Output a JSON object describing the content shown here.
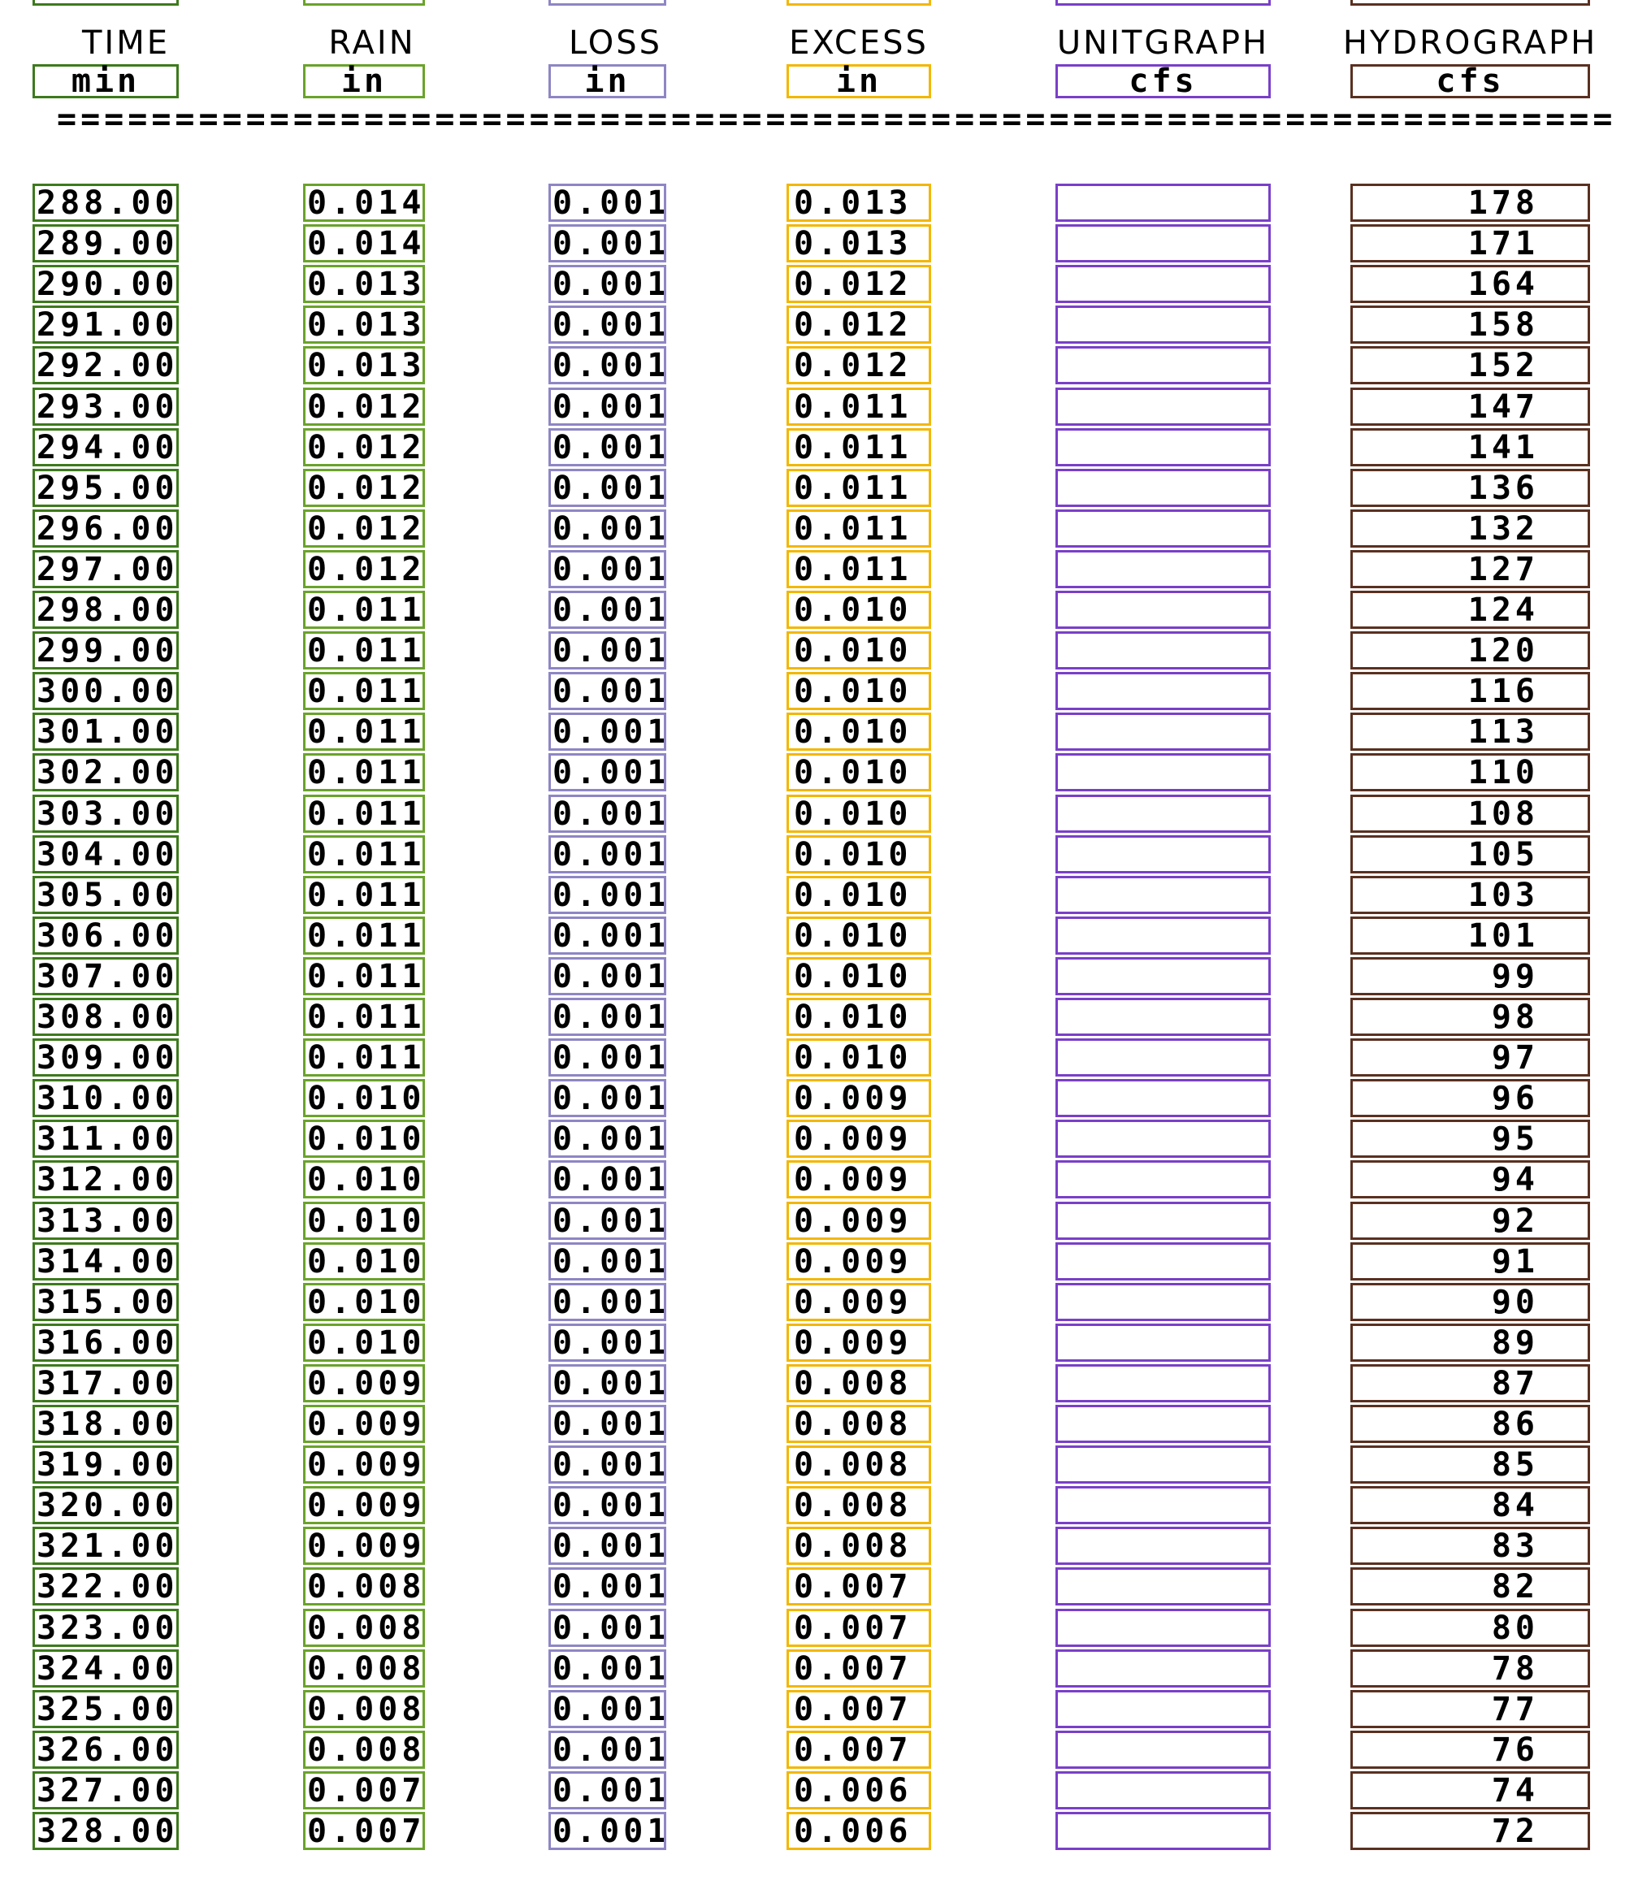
{
  "headers": [
    {
      "key": "time",
      "title": "TIME",
      "unit": "min"
    },
    {
      "key": "rain",
      "title": "RAIN",
      "unit": "in"
    },
    {
      "key": "loss",
      "title": "LOSS",
      "unit": "in"
    },
    {
      "key": "excess",
      "title": "EXCESS",
      "unit": "in"
    },
    {
      "key": "unitgraph",
      "title": "UNITGRAPH",
      "unit": "cfs"
    },
    {
      "key": "hydrograph",
      "title": "HYDROGRAPH",
      "unit": "cfs"
    }
  ],
  "separator": "=====================================================================",
  "colors": {
    "time": "#3d7a1c",
    "rain": "#6aa32a",
    "loss": "#8e86c4",
    "excess": "#f2b705",
    "unitgraph": "#7a3fc9",
    "hydrograph": "#5a3020"
  },
  "rows": [
    {
      "time": "288.00",
      "rain": "0.014",
      "loss": "0.001",
      "excess": "0.013",
      "unitgraph": "",
      "hydrograph": "178"
    },
    {
      "time": "289.00",
      "rain": "0.014",
      "loss": "0.001",
      "excess": "0.013",
      "unitgraph": "",
      "hydrograph": "171"
    },
    {
      "time": "290.00",
      "rain": "0.013",
      "loss": "0.001",
      "excess": "0.012",
      "unitgraph": "",
      "hydrograph": "164"
    },
    {
      "time": "291.00",
      "rain": "0.013",
      "loss": "0.001",
      "excess": "0.012",
      "unitgraph": "",
      "hydrograph": "158"
    },
    {
      "time": "292.00",
      "rain": "0.013",
      "loss": "0.001",
      "excess": "0.012",
      "unitgraph": "",
      "hydrograph": "152"
    },
    {
      "time": "293.00",
      "rain": "0.012",
      "loss": "0.001",
      "excess": "0.011",
      "unitgraph": "",
      "hydrograph": "147"
    },
    {
      "time": "294.00",
      "rain": "0.012",
      "loss": "0.001",
      "excess": "0.011",
      "unitgraph": "",
      "hydrograph": "141"
    },
    {
      "time": "295.00",
      "rain": "0.012",
      "loss": "0.001",
      "excess": "0.011",
      "unitgraph": "",
      "hydrograph": "136"
    },
    {
      "time": "296.00",
      "rain": "0.012",
      "loss": "0.001",
      "excess": "0.011",
      "unitgraph": "",
      "hydrograph": "132"
    },
    {
      "time": "297.00",
      "rain": "0.012",
      "loss": "0.001",
      "excess": "0.011",
      "unitgraph": "",
      "hydrograph": "127"
    },
    {
      "time": "298.00",
      "rain": "0.011",
      "loss": "0.001",
      "excess": "0.010",
      "unitgraph": "",
      "hydrograph": "124"
    },
    {
      "time": "299.00",
      "rain": "0.011",
      "loss": "0.001",
      "excess": "0.010",
      "unitgraph": "",
      "hydrograph": "120"
    },
    {
      "time": "300.00",
      "rain": "0.011",
      "loss": "0.001",
      "excess": "0.010",
      "unitgraph": "",
      "hydrograph": "116"
    },
    {
      "time": "301.00",
      "rain": "0.011",
      "loss": "0.001",
      "excess": "0.010",
      "unitgraph": "",
      "hydrograph": "113"
    },
    {
      "time": "302.00",
      "rain": "0.011",
      "loss": "0.001",
      "excess": "0.010",
      "unitgraph": "",
      "hydrograph": "110"
    },
    {
      "time": "303.00",
      "rain": "0.011",
      "loss": "0.001",
      "excess": "0.010",
      "unitgraph": "",
      "hydrograph": "108"
    },
    {
      "time": "304.00",
      "rain": "0.011",
      "loss": "0.001",
      "excess": "0.010",
      "unitgraph": "",
      "hydrograph": "105"
    },
    {
      "time": "305.00",
      "rain": "0.011",
      "loss": "0.001",
      "excess": "0.010",
      "unitgraph": "",
      "hydrograph": "103"
    },
    {
      "time": "306.00",
      "rain": "0.011",
      "loss": "0.001",
      "excess": "0.010",
      "unitgraph": "",
      "hydrograph": "101"
    },
    {
      "time": "307.00",
      "rain": "0.011",
      "loss": "0.001",
      "excess": "0.010",
      "unitgraph": "",
      "hydrograph": "99"
    },
    {
      "time": "308.00",
      "rain": "0.011",
      "loss": "0.001",
      "excess": "0.010",
      "unitgraph": "",
      "hydrograph": "98"
    },
    {
      "time": "309.00",
      "rain": "0.011",
      "loss": "0.001",
      "excess": "0.010",
      "unitgraph": "",
      "hydrograph": "97"
    },
    {
      "time": "310.00",
      "rain": "0.010",
      "loss": "0.001",
      "excess": "0.009",
      "unitgraph": "",
      "hydrograph": "96"
    },
    {
      "time": "311.00",
      "rain": "0.010",
      "loss": "0.001",
      "excess": "0.009",
      "unitgraph": "",
      "hydrograph": "95"
    },
    {
      "time": "312.00",
      "rain": "0.010",
      "loss": "0.001",
      "excess": "0.009",
      "unitgraph": "",
      "hydrograph": "94"
    },
    {
      "time": "313.00",
      "rain": "0.010",
      "loss": "0.001",
      "excess": "0.009",
      "unitgraph": "",
      "hydrograph": "92"
    },
    {
      "time": "314.00",
      "rain": "0.010",
      "loss": "0.001",
      "excess": "0.009",
      "unitgraph": "",
      "hydrograph": "91"
    },
    {
      "time": "315.00",
      "rain": "0.010",
      "loss": "0.001",
      "excess": "0.009",
      "unitgraph": "",
      "hydrograph": "90"
    },
    {
      "time": "316.00",
      "rain": "0.010",
      "loss": "0.001",
      "excess": "0.009",
      "unitgraph": "",
      "hydrograph": "89"
    },
    {
      "time": "317.00",
      "rain": "0.009",
      "loss": "0.001",
      "excess": "0.008",
      "unitgraph": "",
      "hydrograph": "87"
    },
    {
      "time": "318.00",
      "rain": "0.009",
      "loss": "0.001",
      "excess": "0.008",
      "unitgraph": "",
      "hydrograph": "86"
    },
    {
      "time": "319.00",
      "rain": "0.009",
      "loss": "0.001",
      "excess": "0.008",
      "unitgraph": "",
      "hydrograph": "85"
    },
    {
      "time": "320.00",
      "rain": "0.009",
      "loss": "0.001",
      "excess": "0.008",
      "unitgraph": "",
      "hydrograph": "84"
    },
    {
      "time": "321.00",
      "rain": "0.009",
      "loss": "0.001",
      "excess": "0.008",
      "unitgraph": "",
      "hydrograph": "83"
    },
    {
      "time": "322.00",
      "rain": "0.008",
      "loss": "0.001",
      "excess": "0.007",
      "unitgraph": "",
      "hydrograph": "82"
    },
    {
      "time": "323.00",
      "rain": "0.008",
      "loss": "0.001",
      "excess": "0.007",
      "unitgraph": "",
      "hydrograph": "80"
    },
    {
      "time": "324.00",
      "rain": "0.008",
      "loss": "0.001",
      "excess": "0.007",
      "unitgraph": "",
      "hydrograph": "78"
    },
    {
      "time": "325.00",
      "rain": "0.008",
      "loss": "0.001",
      "excess": "0.007",
      "unitgraph": "",
      "hydrograph": "77"
    },
    {
      "time": "326.00",
      "rain": "0.008",
      "loss": "0.001",
      "excess": "0.007",
      "unitgraph": "",
      "hydrograph": "76"
    },
    {
      "time": "327.00",
      "rain": "0.007",
      "loss": "0.001",
      "excess": "0.006",
      "unitgraph": "",
      "hydrograph": "74"
    },
    {
      "time": "328.00",
      "rain": "0.007",
      "loss": "0.001",
      "excess": "0.006",
      "unitgraph": "",
      "hydrograph": "72"
    }
  ]
}
